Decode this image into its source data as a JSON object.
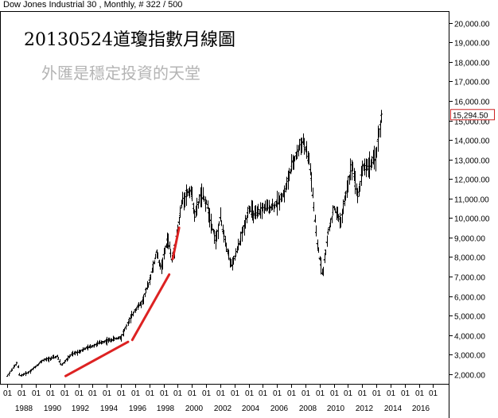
{
  "header": {
    "instrument_line": "Dow Jones Industrial 30 , Monthly, # 322 / 500"
  },
  "annotations": {
    "title": "20130524道瓊指數月線圖",
    "subtitle": "外匯是穩定投資的天堂"
  },
  "colors": {
    "price_bars": "#000000",
    "trend_lines": "#dd2222",
    "last_price_box": "#cc2222"
  },
  "chart_data": {
    "type": "ohlc_bar",
    "title": "20130524道瓊指數月線圖",
    "xlabel": "",
    "ylabel": "",
    "ylim": [
      1500,
      20600
    ],
    "xlim": [
      1986.7,
      2018.1
    ],
    "y_ticks": [
      2000,
      3000,
      4000,
      5000,
      6000,
      7000,
      8000,
      9000,
      10000,
      11000,
      12000,
      13000,
      14000,
      15000,
      16000,
      17000,
      18000,
      19000,
      20000
    ],
    "y_tick_labels": [
      "2,000.00",
      "3,000.00",
      "4,000.00",
      "5,000.00",
      "6,000.00",
      "7,000.00",
      "8,000.00",
      "9,000.00",
      "10,000.00",
      "11,000.00",
      "12,000.00",
      "13,000.00",
      "14,000.00",
      "15,000.00",
      "16,000.00",
      "17,000.00",
      "18,000.00",
      "19,000.00",
      "20,000.00"
    ],
    "x_month_ticks": [
      1987,
      1988,
      1989,
      1990,
      1991,
      1992,
      1993,
      1994,
      1995,
      1996,
      1997,
      1998,
      1999,
      2000,
      2001,
      2002,
      2003,
      2004,
      2005,
      2006,
      2007,
      2008,
      2009,
      2010,
      2011,
      2012,
      2013,
      2014,
      2015,
      2016,
      2017
    ],
    "x_month_label": "01",
    "x_year_ticks": [
      1988,
      1990,
      1992,
      1994,
      1996,
      1998,
      2000,
      2002,
      2004,
      2006,
      2008,
      2010,
      2012,
      2014,
      2016
    ],
    "last_price": "15,294.50",
    "last_price_value": 15294.5,
    "anchor_series": {
      "name": "",
      "points": [
        [
          1987.0,
          1900
        ],
        [
          1987.7,
          2600
        ],
        [
          1987.85,
          1900
        ],
        [
          1988.5,
          2100
        ],
        [
          1989.5,
          2700
        ],
        [
          1990.5,
          2900
        ],
        [
          1990.8,
          2450
        ],
        [
          1991.5,
          3000
        ],
        [
          1992.5,
          3300
        ],
        [
          1993.5,
          3600
        ],
        [
          1994.5,
          3800
        ],
        [
          1995.0,
          3900
        ],
        [
          1995.5,
          4600
        ],
        [
          1996.0,
          5300
        ],
        [
          1996.5,
          5700
        ],
        [
          1997.0,
          6800
        ],
        [
          1997.5,
          8200
        ],
        [
          1997.8,
          7400
        ],
        [
          1998.3,
          9000
        ],
        [
          1998.6,
          7800
        ],
        [
          1999.0,
          9400
        ],
        [
          1999.3,
          10900
        ],
        [
          1999.9,
          11500
        ],
        [
          2000.2,
          10100
        ],
        [
          2000.6,
          11200
        ],
        [
          2001.0,
          10800
        ],
        [
          2001.7,
          8800
        ],
        [
          2002.0,
          10000
        ],
        [
          2002.6,
          8000
        ],
        [
          2002.8,
          7500
        ],
        [
          2003.2,
          8400
        ],
        [
          2003.6,
          9400
        ],
        [
          2004.0,
          10500
        ],
        [
          2004.5,
          10100
        ],
        [
          2005.0,
          10500
        ],
        [
          2005.8,
          10600
        ],
        [
          2006.5,
          11300
        ],
        [
          2007.0,
          12600
        ],
        [
          2007.8,
          14000
        ],
        [
          2008.3,
          12800
        ],
        [
          2008.8,
          8800
        ],
        [
          2009.2,
          7100
        ],
        [
          2009.6,
          9300
        ],
        [
          2010.0,
          10500
        ],
        [
          2010.5,
          9800
        ],
        [
          2011.0,
          11800
        ],
        [
          2011.3,
          12800
        ],
        [
          2011.7,
          11000
        ],
        [
          2012.0,
          12600
        ],
        [
          2012.5,
          12700
        ],
        [
          2012.9,
          13000
        ],
        [
          2013.2,
          14500
        ],
        [
          2013.38,
          15300
        ]
      ]
    },
    "trend_lines": [
      {
        "start": [
          1991.1,
          1900
        ],
        "end": [
          1995.5,
          3650
        ]
      },
      {
        "start": [
          1995.8,
          3750
        ],
        "end": [
          1998.4,
          7100
        ]
      },
      {
        "start": [
          1998.65,
          7900
        ],
        "end": [
          1999.1,
          9500
        ]
      }
    ]
  }
}
